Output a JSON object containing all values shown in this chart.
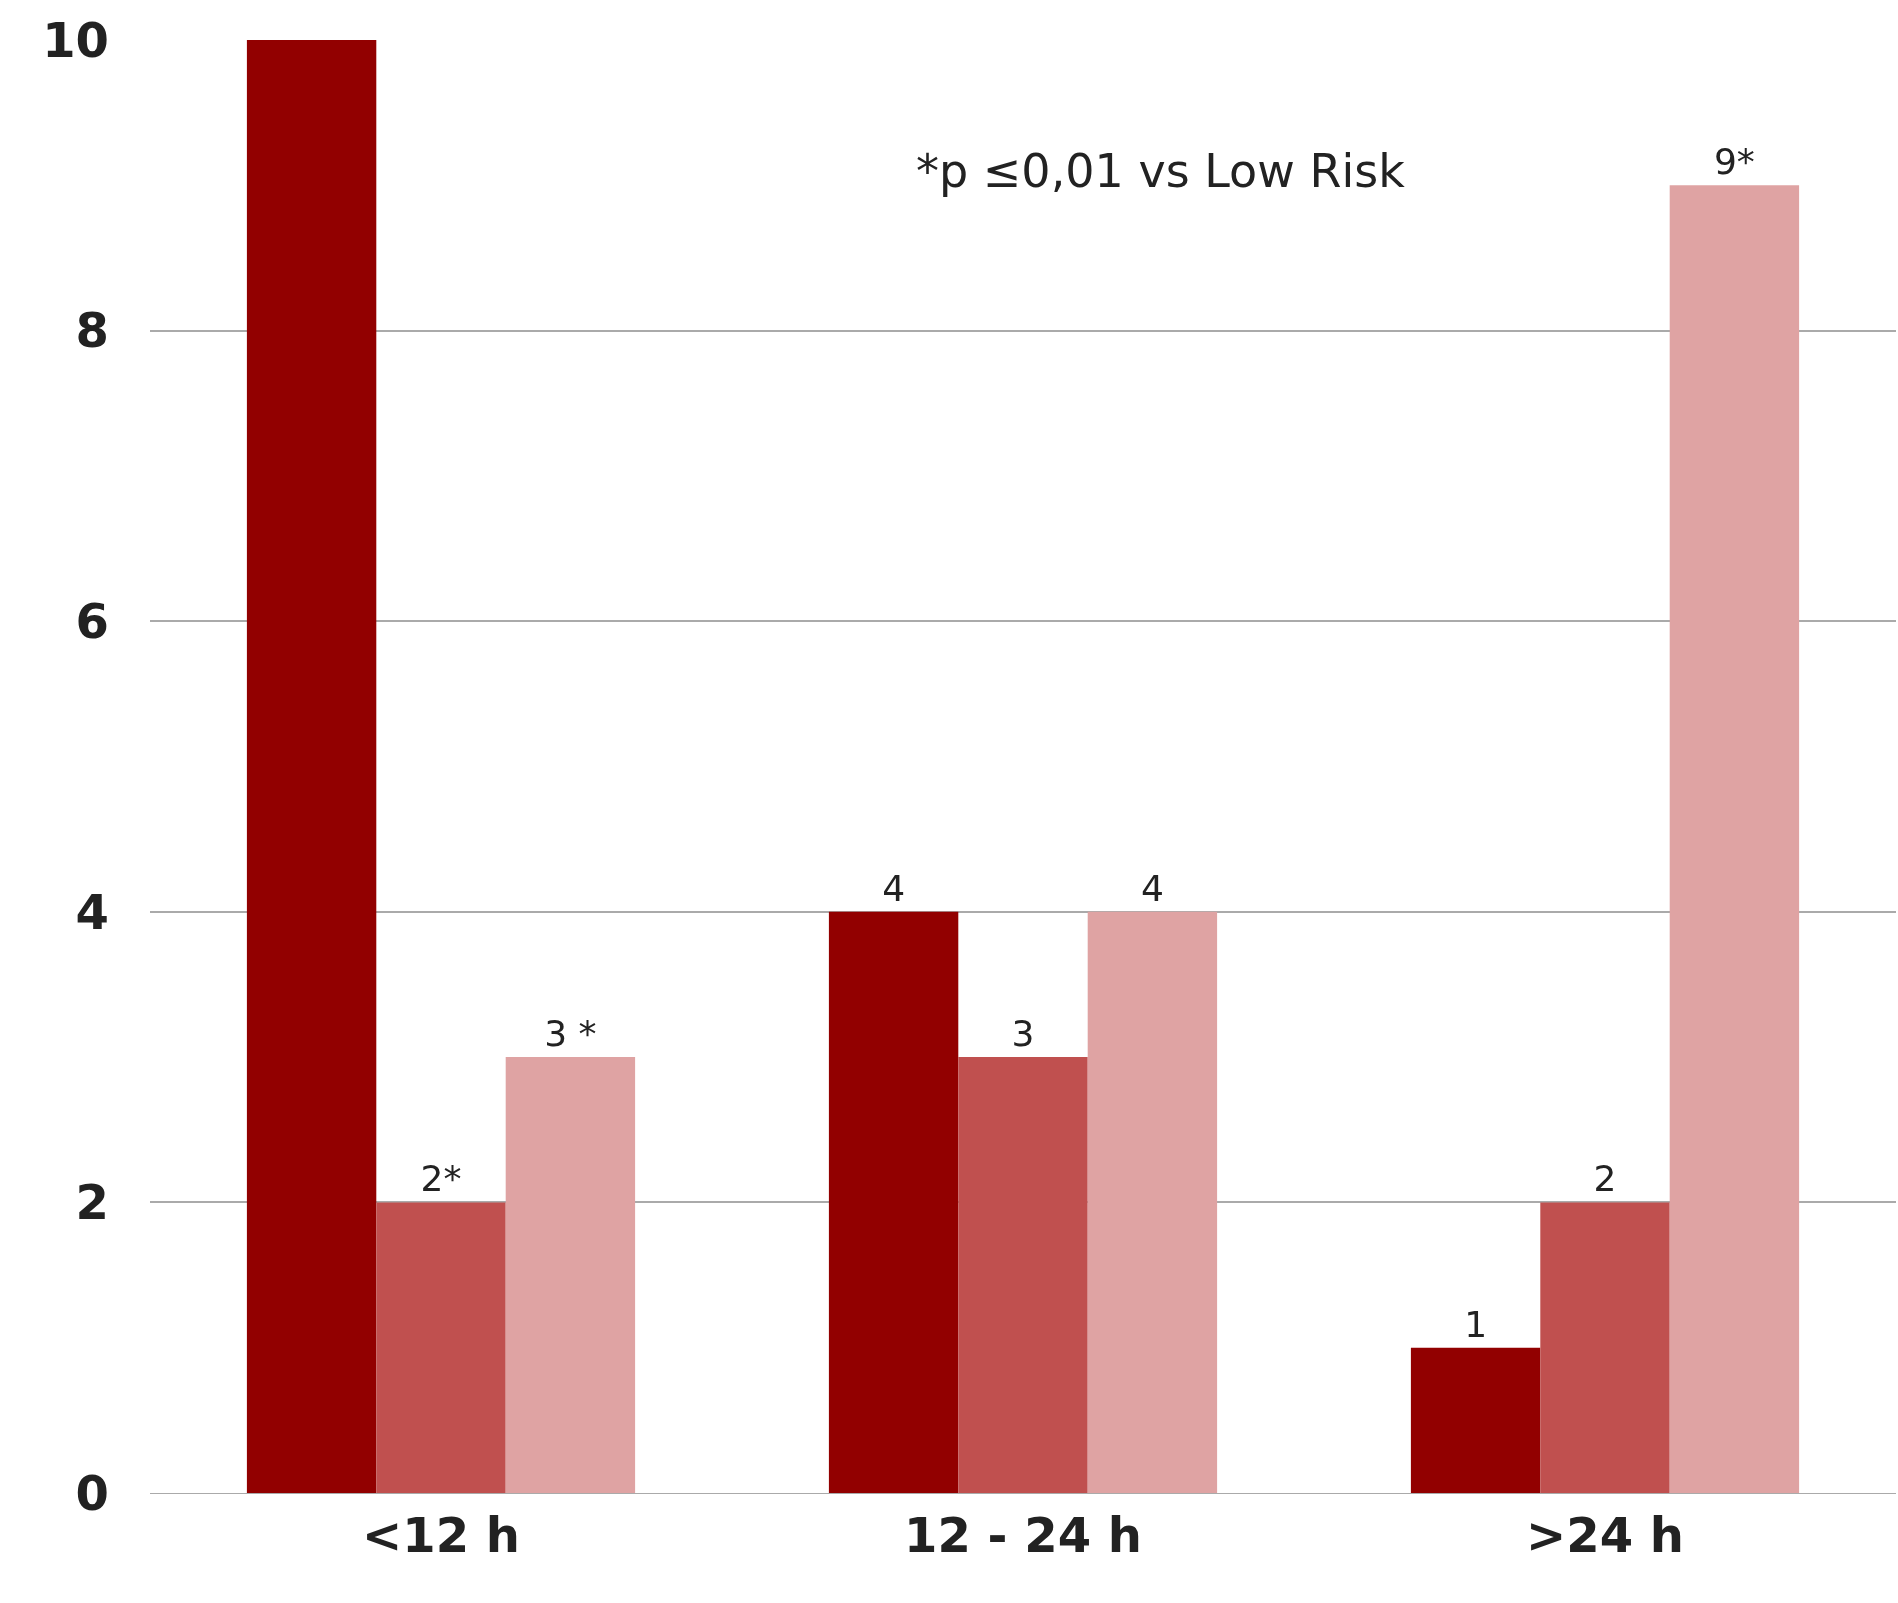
{
  "chart_data": {
    "type": "bar",
    "categories": [
      "<12 h",
      "12 - 24 h",
      ">24 h"
    ],
    "series": [
      {
        "color": "#920000",
        "values": [
          10,
          4,
          1
        ],
        "value_labels": [
          null,
          "4",
          "1"
        ]
      },
      {
        "color": "#c0504f",
        "values": [
          2,
          3,
          2
        ],
        "value_labels": [
          "2*",
          "3",
          "2"
        ]
      },
      {
        "color": "#dfa3a3",
        "values": [
          3,
          4,
          9
        ],
        "value_labels": [
          "3 *",
          "4",
          "9*"
        ]
      }
    ],
    "ylim": [
      0,
      10
    ],
    "yticks": [
      0,
      2,
      4,
      6,
      8,
      10
    ],
    "grid": "y",
    "annotations": [
      "*p ≤0,01 vs Low Risk"
    ]
  }
}
